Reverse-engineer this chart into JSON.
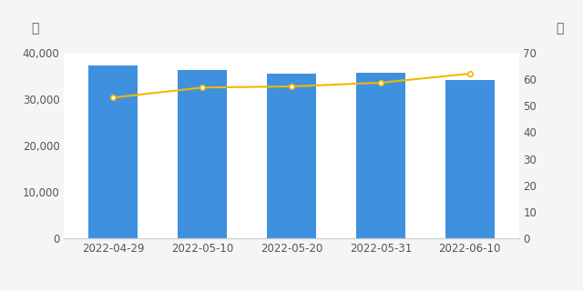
{
  "dates": [
    "2022-04-29",
    "2022-05-10",
    "2022-05-20",
    "2022-05-31",
    "2022-06-10"
  ],
  "bar_values": [
    37100,
    36200,
    35500,
    35700,
    34100
  ],
  "line_values": [
    53.0,
    56.8,
    57.2,
    58.6,
    62.0
  ],
  "bar_color": "#4090e0",
  "line_color": "#f0b800",
  "left_ylabel": "户",
  "right_ylabel": "元",
  "left_ylim": [
    0,
    40000
  ],
  "right_ylim": [
    0,
    70
  ],
  "left_yticks": [
    0,
    10000,
    20000,
    30000,
    40000
  ],
  "right_yticks": [
    0,
    10,
    20,
    30,
    40,
    50,
    60,
    70
  ],
  "background_color": "#f5f5f5",
  "plot_bg_color": "#ffffff",
  "marker": "o",
  "marker_size": 4,
  "marker_color": "#ffffff",
  "marker_edge_color": "#f0b800",
  "line_width": 1.5,
  "bar_width": 0.55,
  "tick_fontsize": 8.5,
  "label_fontsize": 10
}
